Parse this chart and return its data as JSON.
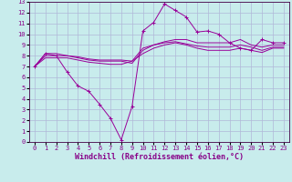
{
  "xlabel": "Windchill (Refroidissement éolien,°C)",
  "xlim": [
    -0.5,
    23.5
  ],
  "ylim": [
    0,
    13
  ],
  "xticks": [
    0,
    1,
    2,
    3,
    4,
    5,
    6,
    7,
    8,
    9,
    10,
    11,
    12,
    13,
    14,
    15,
    16,
    17,
    18,
    19,
    20,
    21,
    22,
    23
  ],
  "yticks": [
    0,
    1,
    2,
    3,
    4,
    5,
    6,
    7,
    8,
    9,
    10,
    11,
    12,
    13
  ],
  "bg_color": "#c8ecec",
  "grid_color": "#b0b8d8",
  "line_color": "#990099",
  "lines": [
    {
      "x": [
        0,
        1,
        2,
        3,
        4,
        5,
        6,
        7,
        8,
        9,
        10,
        11,
        12,
        13,
        14,
        15,
        16,
        17,
        18,
        19,
        20,
        21,
        22,
        23
      ],
      "y": [
        7.0,
        8.2,
        8.0,
        6.5,
        5.2,
        4.7,
        3.5,
        2.2,
        0.2,
        3.3,
        10.3,
        11.1,
        12.8,
        12.2,
        11.6,
        10.2,
        10.3,
        10.0,
        9.2,
        8.7,
        8.5,
        9.5,
        9.2,
        9.2
      ],
      "marker": "+"
    },
    {
      "x": [
        0,
        1,
        2,
        3,
        4,
        5,
        6,
        7,
        8,
        9,
        10,
        11,
        12,
        13,
        14,
        15,
        16,
        17,
        18,
        19,
        20,
        21,
        22,
        23
      ],
      "y": [
        7.0,
        8.0,
        8.0,
        8.0,
        7.8,
        7.6,
        7.5,
        7.5,
        7.5,
        7.3,
        8.5,
        9.0,
        9.3,
        9.5,
        9.5,
        9.2,
        9.2,
        9.2,
        9.2,
        9.5,
        9.0,
        8.8,
        9.0,
        9.0
      ],
      "marker": null
    },
    {
      "x": [
        0,
        1,
        2,
        3,
        4,
        5,
        6,
        7,
        8,
        9,
        10,
        11,
        12,
        13,
        14,
        15,
        16,
        17,
        18,
        19,
        20,
        21,
        22,
        23
      ],
      "y": [
        7.0,
        8.2,
        8.2,
        8.0,
        7.9,
        7.7,
        7.6,
        7.6,
        7.6,
        7.5,
        8.2,
        8.7,
        9.0,
        9.2,
        9.0,
        8.7,
        8.5,
        8.5,
        8.5,
        8.7,
        8.5,
        8.3,
        8.7,
        8.7
      ],
      "marker": null
    },
    {
      "x": [
        0,
        1,
        2,
        3,
        4,
        5,
        6,
        7,
        8,
        9,
        10,
        11,
        12,
        13,
        14,
        15,
        16,
        17,
        18,
        19,
        20,
        21,
        22,
        23
      ],
      "y": [
        7.0,
        7.8,
        7.8,
        7.8,
        7.6,
        7.4,
        7.3,
        7.2,
        7.2,
        7.5,
        8.7,
        9.0,
        9.2,
        9.3,
        9.1,
        8.9,
        8.8,
        8.8,
        8.8,
        9.0,
        8.8,
        8.5,
        8.8,
        8.8
      ],
      "marker": null
    }
  ],
  "tick_fontsize": 5.0,
  "xlabel_fontsize": 6.0,
  "linewidth": 0.7,
  "marker_size": 2.5
}
